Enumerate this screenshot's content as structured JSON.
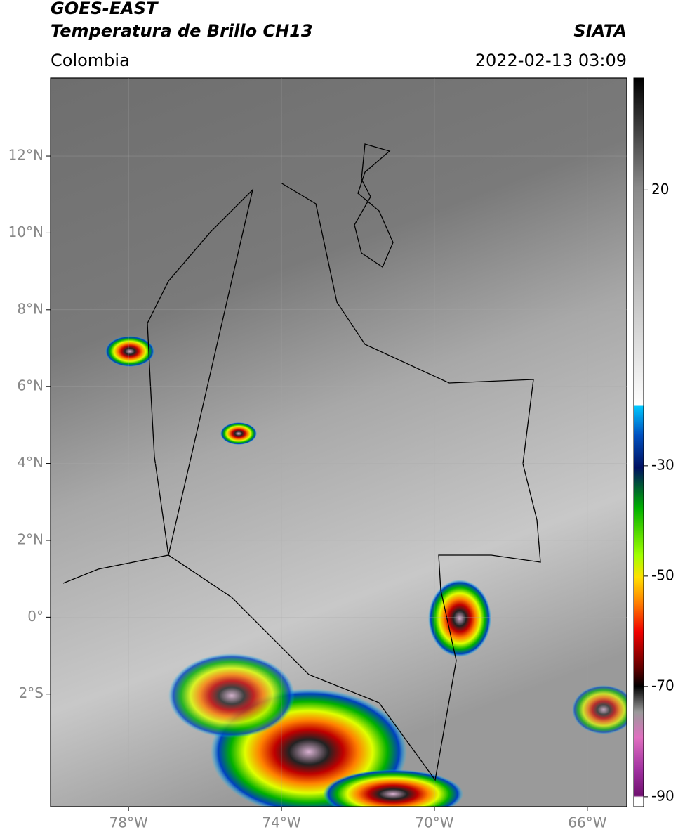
{
  "header": {
    "satellite": "GOES-EAST",
    "product": "Temperatura de Brillo CH13",
    "source": "SIATA",
    "region": "Colombia",
    "datetime": "2022-02-13 03:09"
  },
  "map": {
    "lon_range": [
      -80.04,
      -64.97
    ],
    "lat_range": [
      14.03,
      -4.93
    ],
    "lat_ticks": [
      {
        "value": 12,
        "label": "12°N"
      },
      {
        "value": 10,
        "label": "10°N"
      },
      {
        "value": 8,
        "label": "8°N"
      },
      {
        "value": 6,
        "label": "6°N"
      },
      {
        "value": 4,
        "label": "4°N"
      },
      {
        "value": 2,
        "label": "2°N"
      },
      {
        "value": 0,
        "label": "0°"
      },
      {
        "value": -2,
        "label": "2°S"
      }
    ],
    "lon_ticks": [
      {
        "value": -78,
        "label": "78°W"
      },
      {
        "value": -74,
        "label": "74°W"
      },
      {
        "value": -70,
        "label": "70°W"
      },
      {
        "value": -66,
        "label": "66°W"
      }
    ]
  },
  "colorbar": {
    "range": [
      40.3,
      -91.8
    ],
    "ticks": [
      20,
      -30,
      -50,
      -70,
      -90
    ]
  }
}
